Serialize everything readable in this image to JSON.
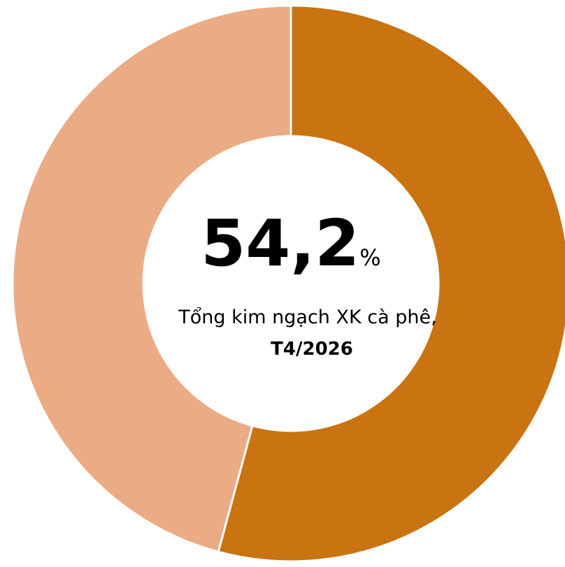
{
  "chart_data": {
    "type": "donut",
    "values": [
      54.2,
      45.8
    ],
    "value_labels": [
      "54,2",
      null
    ],
    "unit": "%",
    "colors": [
      "#c97311",
      "#ebab84"
    ],
    "subtitle": "Tổng kim ngạch XK cà phê,",
    "caption": "T4/2026"
  }
}
